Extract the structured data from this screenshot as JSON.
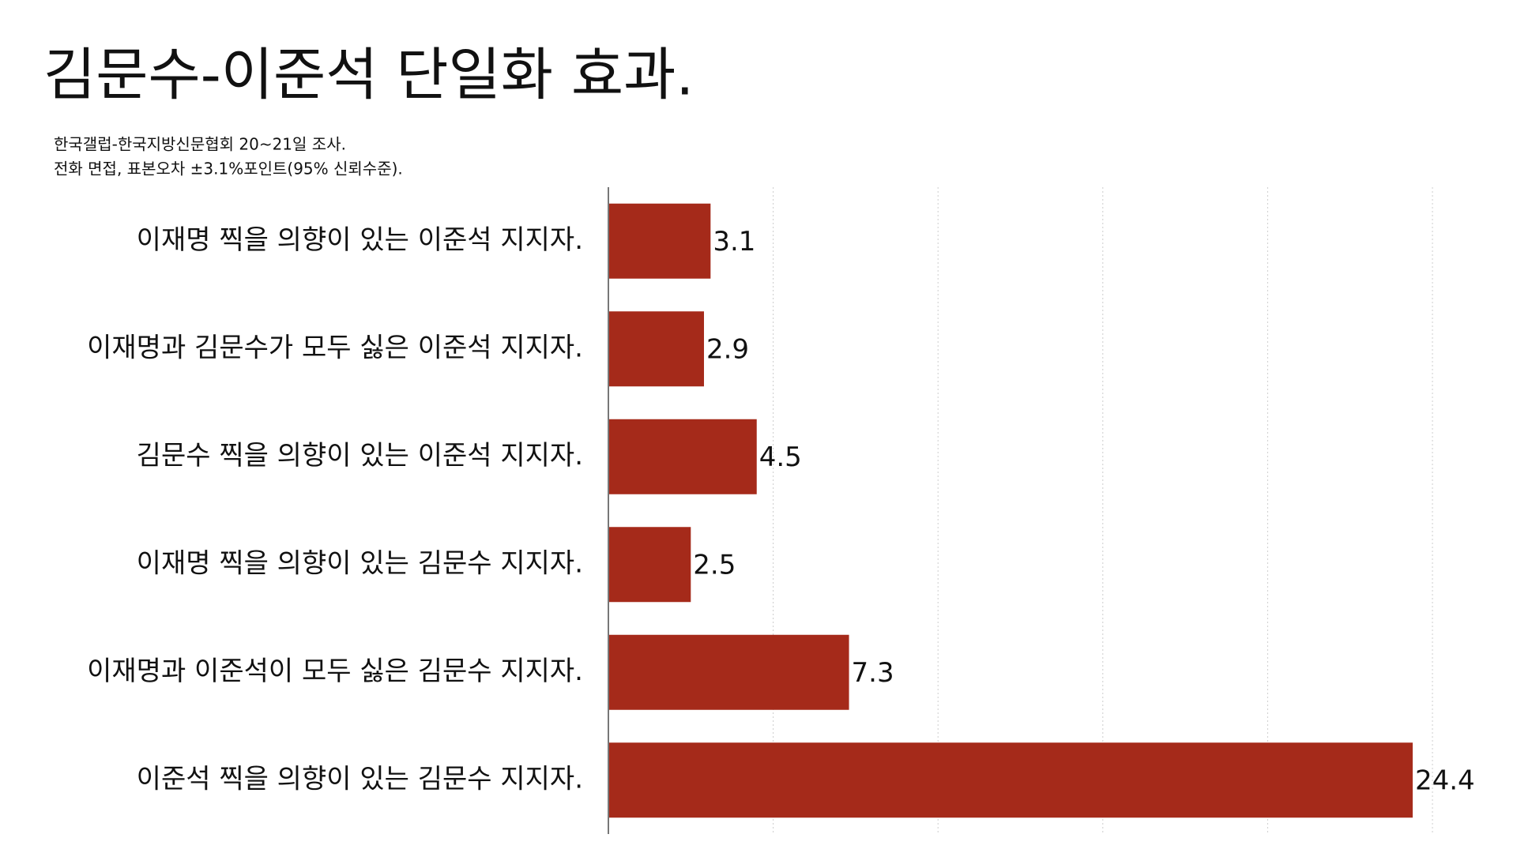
{
  "chart_data": {
    "type": "barh",
    "title": "김문수-이준석 단일화 효과.",
    "subtitle": [
      "한국갤럽-한국지방신문협회 20~21일 조사.",
      "전화 면접, 표본오차 ±3.1%포인트(95% 신뢰수준)."
    ],
    "categories": [
      "이재명 찍을 의향이 있는 이준석 지지자.",
      "이재명과 김문수가 모두 싫은 이준석 지지자.",
      "김문수 찍을 의향이 있는 이준석 지지자.",
      "이재명 찍을 의향이 있는 김문수 지지자.",
      "이재명과 이준석이 모두 싫은 김문수 지지자.",
      "이준석 찍을 의향이 있는 김문수 지지자."
    ],
    "values": [
      3.1,
      2.9,
      4.5,
      2.5,
      7.3,
      24.4
    ],
    "color": "#a52a1a",
    "xlim": [
      0,
      25
    ],
    "xticks": [
      0,
      5,
      10,
      15,
      20,
      25
    ],
    "grid": true
  }
}
